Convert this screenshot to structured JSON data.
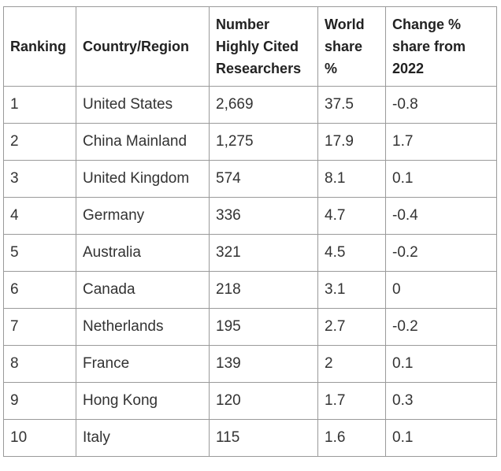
{
  "table": {
    "headers": [
      "Ranking",
      "Country/Region",
      "Number Highly Cited Researchers",
      "World share %",
      "Change % share from 2022"
    ],
    "rows": [
      [
        "1",
        "United States",
        "2,669",
        "37.5",
        "-0.8"
      ],
      [
        "2",
        "China Mainland",
        "1,275",
        "17.9",
        "1.7"
      ],
      [
        "3",
        "United Kingdom",
        "574",
        "8.1",
        "0.1"
      ],
      [
        "4",
        "Germany",
        "336",
        "4.7",
        "-0.4"
      ],
      [
        "5",
        "Australia",
        "321",
        "4.5",
        "-0.2"
      ],
      [
        "6",
        "Canada",
        "218",
        "3.1",
        "0"
      ],
      [
        "7",
        "Netherlands",
        "195",
        "2.7",
        "-0.2"
      ],
      [
        "8",
        "France",
        "139",
        "2",
        "0.1"
      ],
      [
        "9",
        "Hong Kong",
        "120",
        "1.7",
        "0.3"
      ],
      [
        "10",
        "Italy",
        "115",
        "1.6",
        "0.1"
      ]
    ]
  }
}
